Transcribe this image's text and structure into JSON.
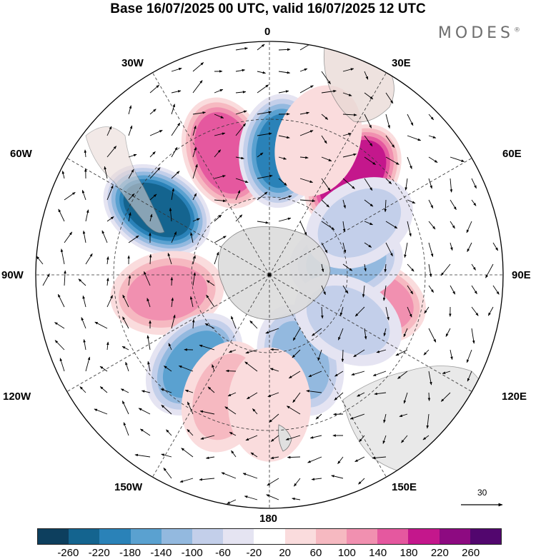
{
  "title": "Base 16/07/2025 00 UTC, valid 16/07/2025 12 UTC",
  "brand": "MODES",
  "brand_mark": "®",
  "longitude_labels": {
    "top": "0",
    "bottom": "180",
    "left": "90W",
    "right": "90E",
    "upper_left_30": "30W",
    "upper_right_30": "30E",
    "upper_left_60": "60W",
    "upper_right_60": "60E",
    "lower_left_120": "120W",
    "lower_right_120": "120E",
    "lower_left_150": "150W",
    "lower_right_150": "150E"
  },
  "reference_vector": "30",
  "colorbar": {
    "colors": [
      "#0d3f5e",
      "#14648f",
      "#2a82b8",
      "#5aa1d0",
      "#93b9df",
      "#c3cfea",
      "#e5e4f2",
      "#ffffff",
      "#fadcdd",
      "#f6b9c1",
      "#f190b0",
      "#e5589f",
      "#c4178c",
      "#8d0a81",
      "#52066e"
    ],
    "ticks": [
      "-260",
      "-220",
      "-180",
      "-140",
      "-100",
      "-60",
      "-20",
      "20",
      "60",
      "100",
      "140",
      "180",
      "220",
      "260"
    ]
  },
  "anomalies": [
    {
      "lon": -60,
      "lat": -40,
      "value": -220
    },
    {
      "lon": -20,
      "lat": -40,
      "value": 180
    },
    {
      "lon": 5,
      "lat": -42,
      "value": -180
    },
    {
      "lon": 40,
      "lat": -40,
      "value": 220
    },
    {
      "lon": -100,
      "lat": -50,
      "value": 120
    },
    {
      "lon": -140,
      "lat": -45,
      "value": -140
    },
    {
      "lon": 160,
      "lat": -55,
      "value": -100
    },
    {
      "lon": 105,
      "lat": -50,
      "value": 140
    },
    {
      "lon": 80,
      "lat": -60,
      "value": -120
    },
    {
      "lon": 120,
      "lat": -55,
      "value": -80
    },
    {
      "lon": -160,
      "lat": -40,
      "value": 80
    },
    {
      "lon": 180,
      "lat": -40,
      "value": 60
    },
    {
      "lon": 60,
      "lat": -50,
      "value": -60
    },
    {
      "lon": 20,
      "lat": -35,
      "value": 60
    }
  ]
}
